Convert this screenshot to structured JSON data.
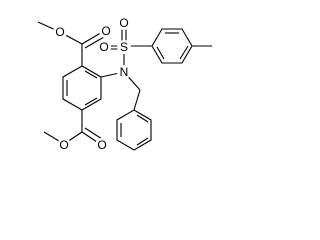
{
  "atoms": [
    "O",
    "O",
    "S",
    "O",
    "O",
    "N",
    "O",
    "O"
  ]
}
